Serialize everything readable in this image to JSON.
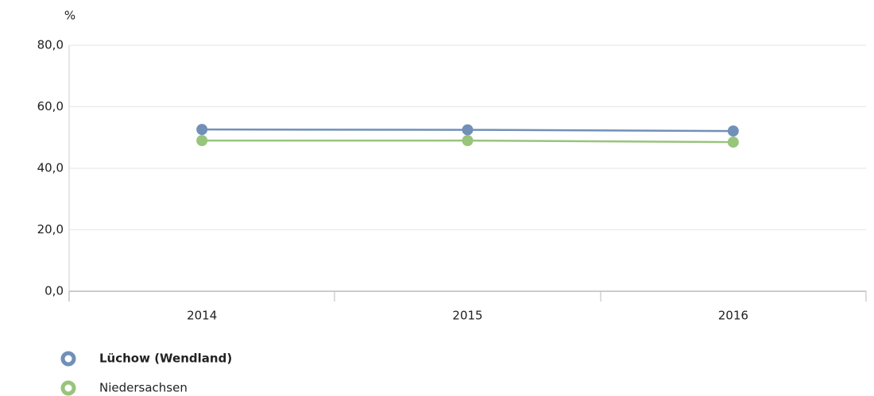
{
  "chart_data": {
    "type": "line",
    "y_label": "%",
    "categories": [
      "2014",
      "2015",
      "2016"
    ],
    "series": [
      {
        "name": "Lüchow (Wendland)",
        "color": "#7190b8",
        "values": [
          52.6,
          52.5,
          52.1
        ]
      },
      {
        "name": "Niedersachsen",
        "color": "#98c47c",
        "values": [
          49.0,
          49.0,
          48.5
        ]
      }
    ],
    "ylim": [
      0,
      80
    ],
    "yticks": [
      {
        "value": 0,
        "label": "0,0"
      },
      {
        "value": 20,
        "label": "20,0"
      },
      {
        "value": 40,
        "label": "40,0"
      },
      {
        "value": 60,
        "label": "60,0"
      },
      {
        "value": 80,
        "label": "80,0"
      }
    ],
    "grid": true
  }
}
